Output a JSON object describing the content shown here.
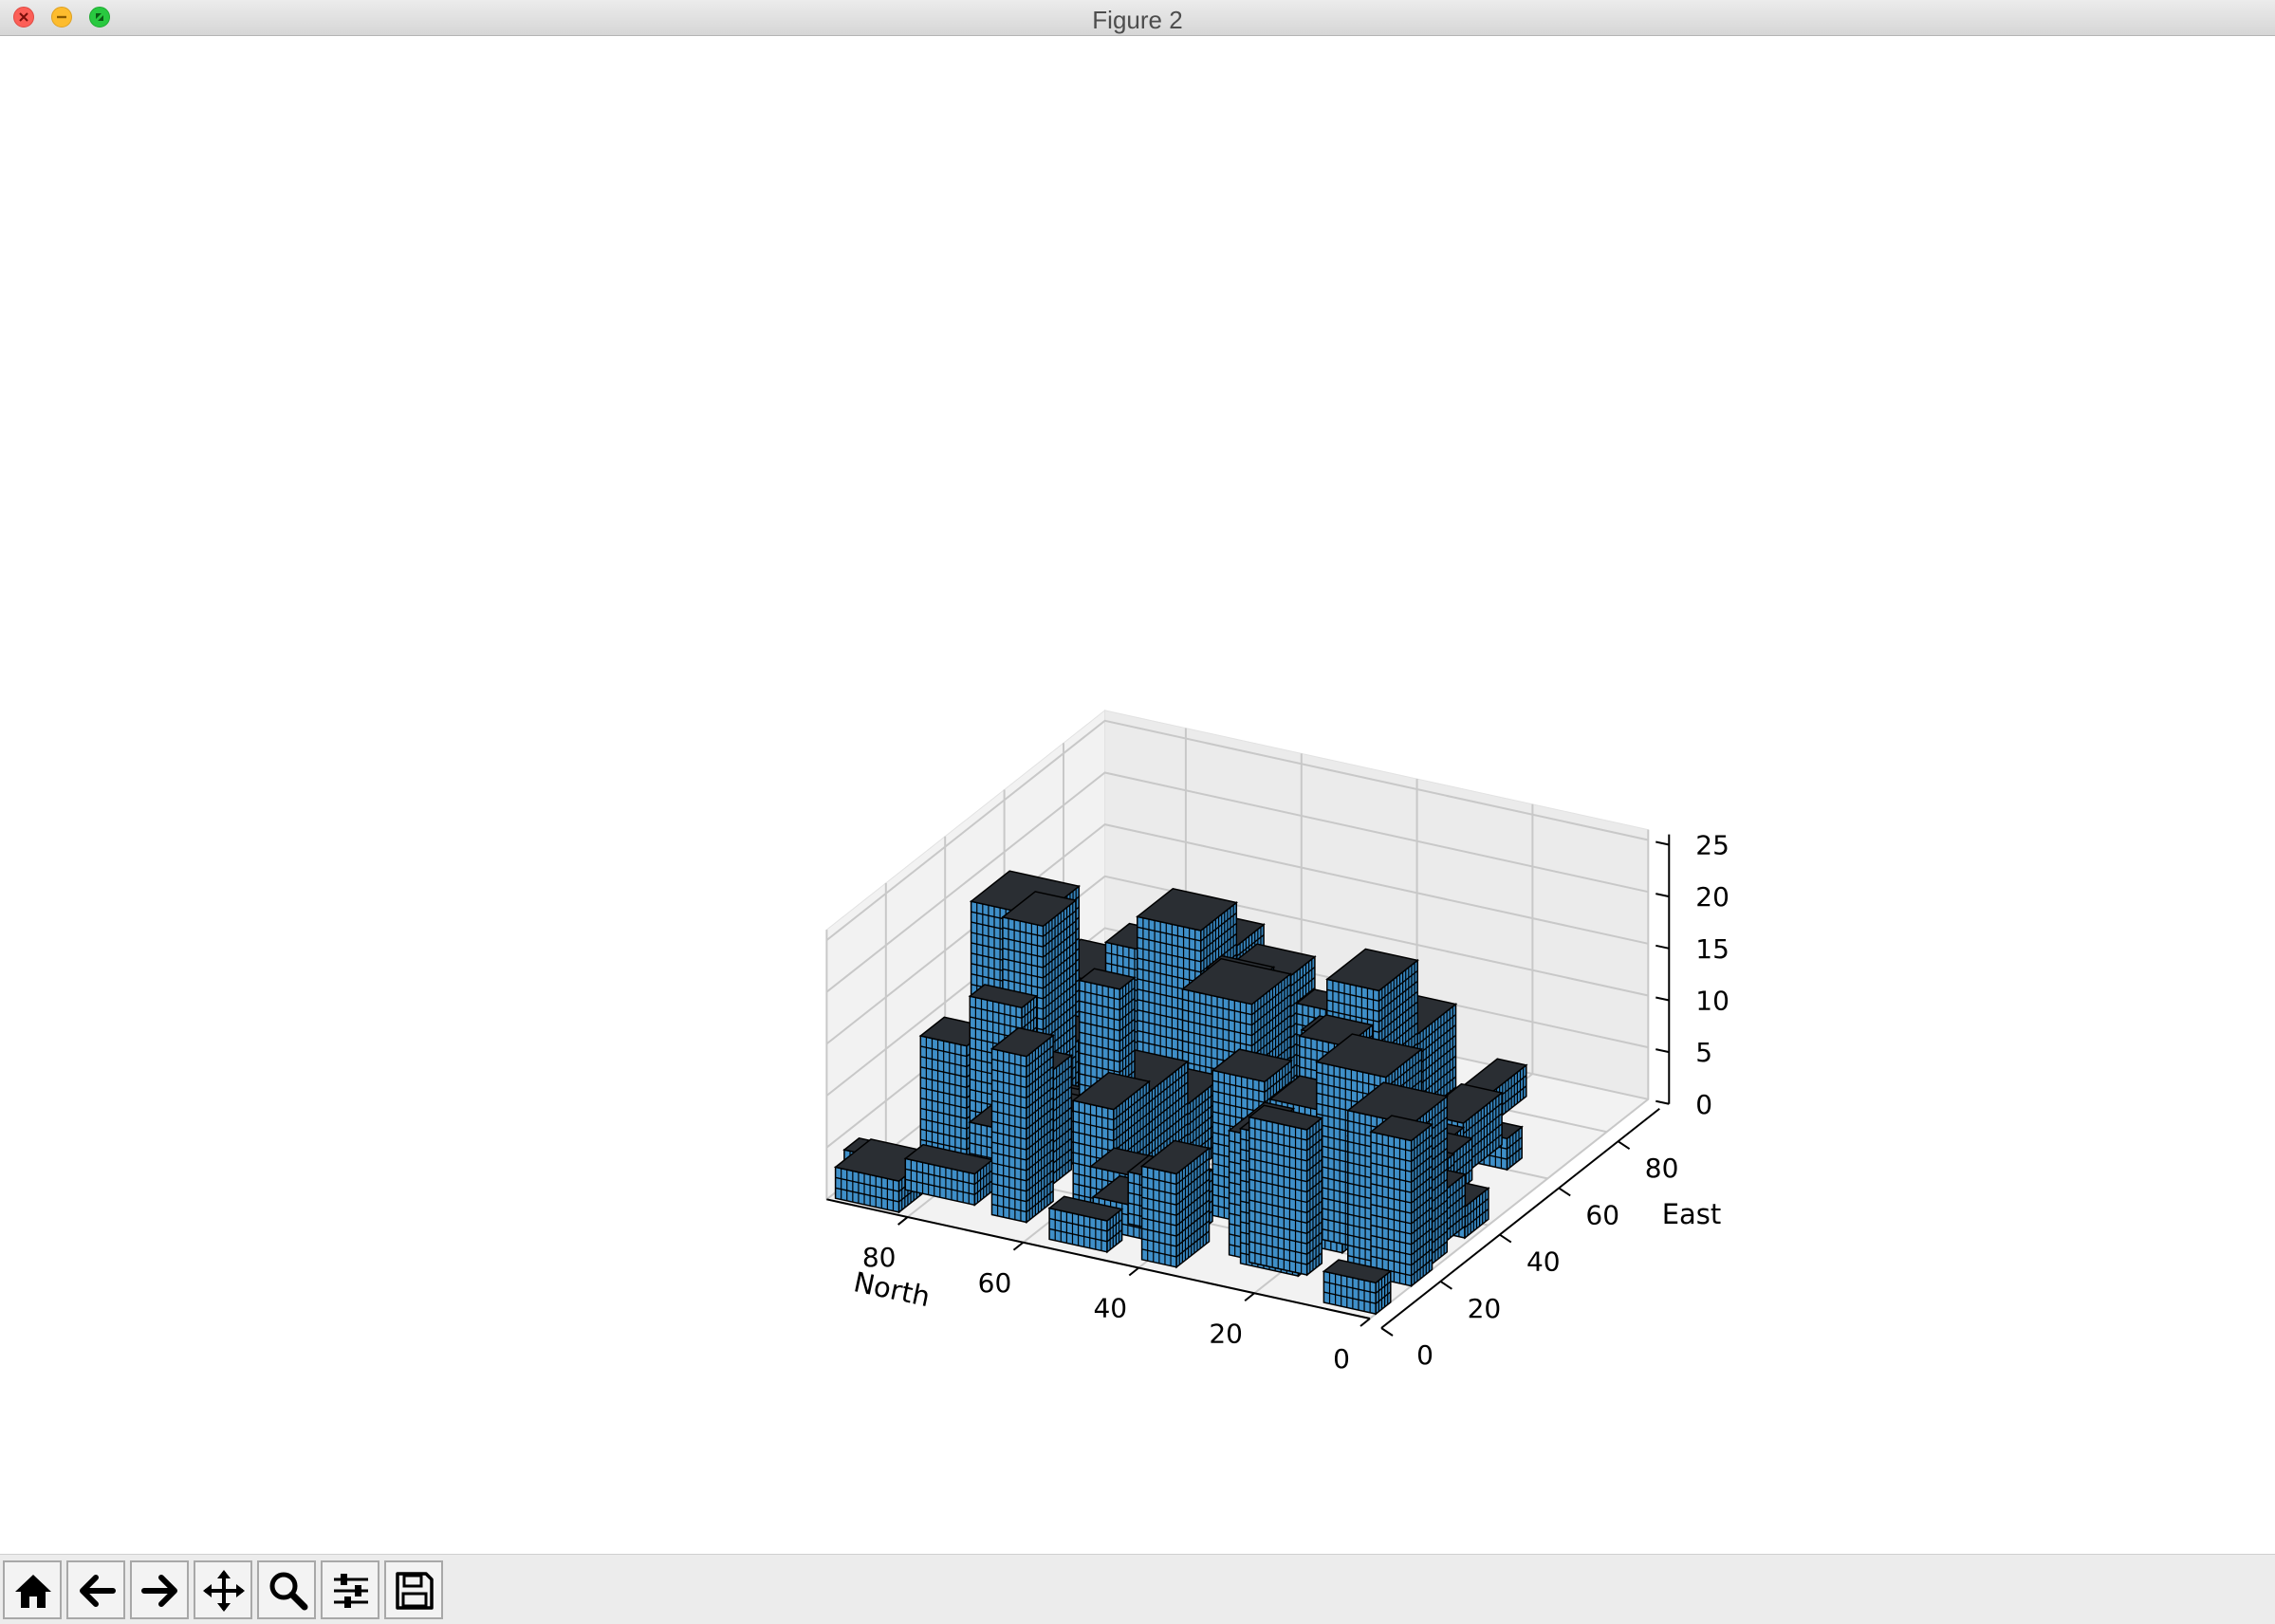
{
  "window": {
    "title": "Figure 2"
  },
  "toolbar": {
    "buttons": [
      {
        "name": "home-button",
        "icon": "home-icon"
      },
      {
        "name": "back-button",
        "icon": "arrow-left-icon"
      },
      {
        "name": "forward-button",
        "icon": "arrow-right-icon"
      },
      {
        "name": "pan-button",
        "icon": "move-icon"
      },
      {
        "name": "zoom-button",
        "icon": "magnifier-icon"
      },
      {
        "name": "configure-subplots-button",
        "icon": "sliders-icon"
      },
      {
        "name": "save-button",
        "icon": "floppy-disk-icon"
      }
    ]
  },
  "chart_data": {
    "type": "3d-voxel",
    "xlabel": "North",
    "ylabel": "East",
    "zlabel": "",
    "x_ticks": [
      "80",
      "60",
      "40",
      "20",
      "0"
    ],
    "y_ticks": [
      "0",
      "20",
      "40",
      "60",
      "80"
    ],
    "z_ticks": [
      "0",
      "5",
      "10",
      "15",
      "20",
      "25"
    ],
    "xlim": [
      0,
      94
    ],
    "ylim": [
      0,
      94
    ],
    "zlim": [
      0,
      26
    ],
    "voxel_color": "#3f8fc8",
    "edge_color": "#000000",
    "grid": true
  }
}
